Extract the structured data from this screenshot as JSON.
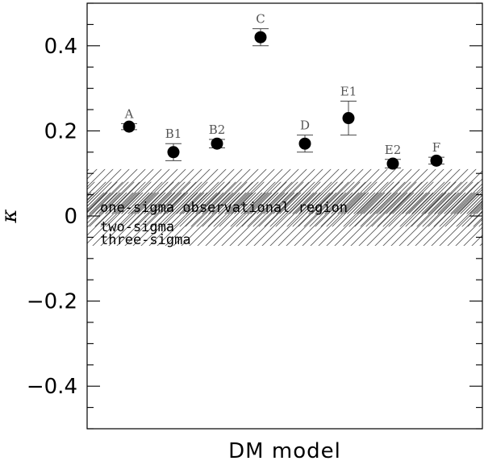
{
  "chart_data": {
    "type": "scatter",
    "title": "",
    "xlabel": "DM model",
    "ylabel": "κ",
    "ylim": [
      -0.5,
      0.5
    ],
    "yticks": [
      -0.4,
      -0.2,
      0,
      0.2,
      0.4
    ],
    "ytick_labels": [
      "−0.4",
      "−0.2",
      "0",
      "0.2",
      "0.4"
    ],
    "points": [
      {
        "label": "A",
        "y": 0.21,
        "err": 0.007
      },
      {
        "label": "B1",
        "y": 0.15,
        "err": 0.02
      },
      {
        "label": "B2",
        "y": 0.17,
        "err": 0.01
      },
      {
        "label": "C",
        "y": 0.42,
        "err": 0.02
      },
      {
        "label": "D",
        "y": 0.17,
        "err": 0.02
      },
      {
        "label": "E1",
        "y": 0.23,
        "err": 0.04
      },
      {
        "label": "E2",
        "y": 0.123,
        "err": 0.01
      },
      {
        "label": "F",
        "y": 0.13,
        "err": 0.008
      }
    ],
    "bands": [
      {
        "name": "one-sigma observational region",
        "ymin": 0.005,
        "ymax": 0.055
      },
      {
        "name": "two-sigma",
        "ymin": -0.025,
        "ymax": 0.08
      },
      {
        "name": "three-sigma",
        "ymin": -0.07,
        "ymax": 0.11
      }
    ],
    "region_labels": [
      "one-sigma observational region",
      "two-sigma",
      "three-sigma"
    ]
  }
}
